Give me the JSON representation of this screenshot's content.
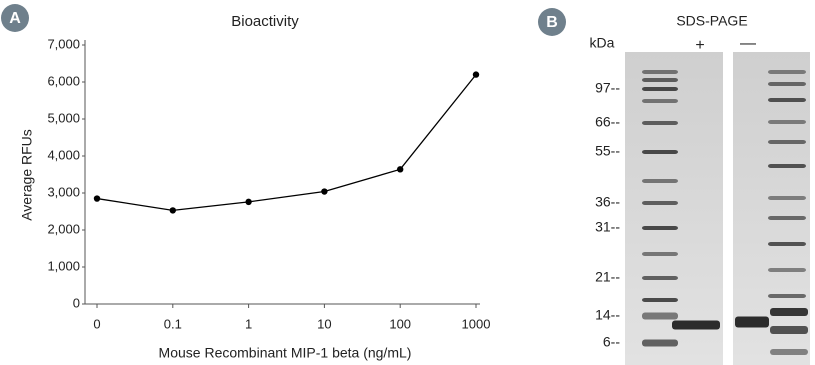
{
  "badges": [
    "A",
    "B"
  ],
  "chart_data": {
    "type": "line",
    "title": "Bioactivity",
    "x_label": "Mouse Recombinant MIP-1 beta (ng/mL)",
    "y_label": "Average RFUs",
    "categories": [
      "0",
      "0.1",
      "1",
      "10",
      "100",
      "1000"
    ],
    "values": [
      2850,
      2530,
      2760,
      3040,
      3640,
      6200
    ],
    "color": "#000000",
    "ylim": [
      0,
      7000
    ],
    "yticks": [
      0,
      {
        "value": 1000,
        "label": "1,000"
      },
      {
        "value": 2000,
        "label": "2,000"
      },
      {
        "value": 3000,
        "label": "3,000"
      },
      {
        "value": 4000,
        "label": "4,000"
      },
      {
        "value": 5000,
        "label": "5,000"
      },
      {
        "value": 6000,
        "label": "6,000"
      },
      {
        "value": 7000,
        "label": "7,000"
      }
    ],
    "grid": false
  },
  "gel": {
    "title": "SDS-PAGE",
    "unit_label": "kDa",
    "lane_labels": [
      "+",
      "—"
    ],
    "markers": [
      "97--",
      "66--",
      "55--",
      "36--",
      "31--",
      "21--",
      "14--",
      "6--"
    ]
  }
}
